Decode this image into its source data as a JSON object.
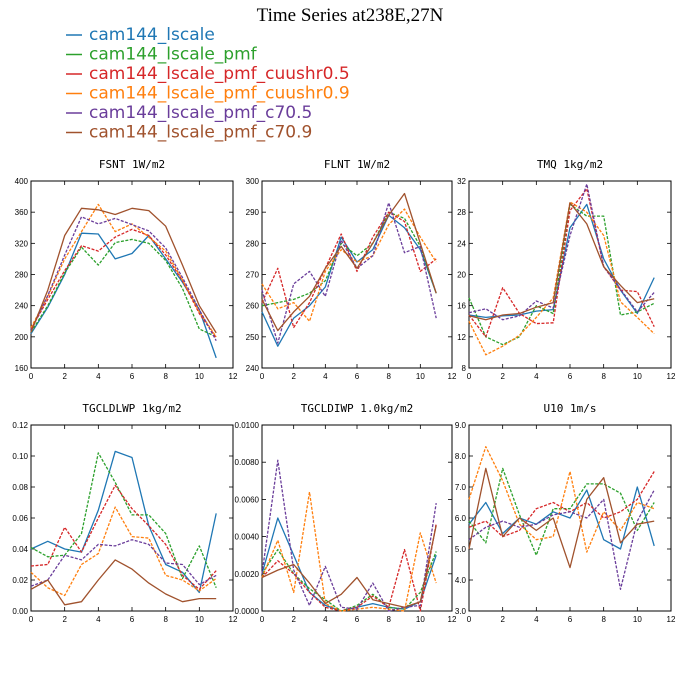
{
  "figure_title": "Time Series at238E,27N",
  "legend": [
    {
      "label": "cam144_lscale",
      "color": "#1f77b4",
      "dash": "solid"
    },
    {
      "label": "cam144_lscale_pmf",
      "color": "#2ca02c",
      "dash": "dashed"
    },
    {
      "label": "cam144_lscale_pmf_cuushr0.5",
      "color": "#d62728",
      "dash": "dashed"
    },
    {
      "label": "cam144_lscale_pmf_cuushr0.9",
      "color": "#ff7f0e",
      "dash": "dashed"
    },
    {
      "label": "cam144_lscale_pmf_c70.5",
      "color": "#6a3d9a",
      "dash": "dashed"
    },
    {
      "label": "cam144_lscale_pmf_c70.9",
      "color": "#a0522d",
      "dash": "solid"
    }
  ],
  "chart_data": [
    {
      "type": "line",
      "title": "FSNT   1W/m2",
      "x": [
        0,
        1,
        2,
        3,
        4,
        5,
        6,
        7,
        8,
        9,
        10,
        11
      ],
      "xlim": [
        0,
        12
      ],
      "xticks": [
        "0",
        "2",
        "4",
        "6",
        "8",
        "10",
        "12"
      ],
      "ylim": [
        160,
        400
      ],
      "yticks": [
        "160",
        "200",
        "240",
        "280",
        "320",
        "360",
        "400"
      ],
      "series": [
        {
          "name": "cam144_lscale",
          "values": [
            204,
            238,
            280,
            333,
            332,
            300,
            307,
            330,
            300,
            270,
            235,
            173
          ]
        },
        {
          "name": "cam144_lscale_pmf",
          "values": [
            206,
            240,
            282,
            315,
            292,
            321,
            325,
            320,
            298,
            262,
            210,
            200
          ]
        },
        {
          "name": "cam144_lscale_pmf_cuushr0.5",
          "values": [
            210,
            248,
            285,
            317,
            310,
            328,
            338,
            330,
            305,
            272,
            230,
            199
          ]
        },
        {
          "name": "cam144_lscale_pmf_cuushr0.9",
          "values": [
            212,
            252,
            300,
            335,
            370,
            335,
            345,
            328,
            310,
            273,
            232,
            200
          ]
        },
        {
          "name": "cam144_lscale_pmf_c70.5",
          "values": [
            208,
            253,
            305,
            354,
            345,
            352,
            344,
            336,
            314,
            276,
            235,
            195
          ]
        },
        {
          "name": "cam144_lscale_pmf_c70.9",
          "values": [
            206,
            260,
            330,
            365,
            363,
            357,
            365,
            362,
            342,
            292,
            240,
            205
          ]
        }
      ]
    },
    {
      "type": "line",
      "title": "FLNT   1W/m2",
      "x": [
        0,
        1,
        2,
        3,
        4,
        5,
        6,
        7,
        8,
        9,
        10,
        11
      ],
      "xlim": [
        0,
        12
      ],
      "xticks": [
        "0",
        "2",
        "4",
        "6",
        "8",
        "10",
        "12"
      ],
      "ylim": [
        240,
        300
      ],
      "yticks": [
        "240",
        "250",
        "260",
        "270",
        "280",
        "290",
        "300"
      ],
      "series": [
        {
          "name": "cam144_lscale",
          "values": [
            258,
            247,
            256,
            260,
            266,
            282,
            274,
            278,
            289,
            285,
            278,
            264
          ]
        },
        {
          "name": "cam144_lscale_pmf",
          "values": [
            260,
            261,
            262,
            264,
            268,
            280,
            276,
            280,
            290,
            288,
            279,
            264
          ]
        },
        {
          "name": "cam144_lscale_pmf_cuushr0.5",
          "values": [
            261,
            272,
            253,
            261,
            272,
            283,
            271,
            282,
            290,
            287,
            271,
            275
          ]
        },
        {
          "name": "cam144_lscale_pmf_cuushr0.9",
          "values": [
            267,
            259,
            261,
            255,
            271,
            278,
            274,
            276,
            286,
            291,
            282,
            274
          ]
        },
        {
          "name": "cam144_lscale_pmf_c70.5",
          "values": [
            265,
            248,
            267,
            271,
            263,
            281,
            272,
            276,
            293,
            277,
            279,
            256
          ]
        },
        {
          "name": "cam144_lscale_pmf_c70.9",
          "values": [
            262,
            252,
            258,
            263,
            272,
            279,
            272,
            280,
            289,
            296,
            280,
            264
          ]
        }
      ]
    },
    {
      "type": "line",
      "title": "TMQ   1kg/m2",
      "x": [
        0,
        1,
        2,
        3,
        4,
        5,
        6,
        7,
        8,
        9,
        10,
        11
      ],
      "xlim": [
        0,
        12
      ],
      "xticks": [
        "0",
        "2",
        "4",
        "6",
        "8",
        "10",
        "12"
      ],
      "ylim": [
        8,
        32
      ],
      "yticks": [
        "8",
        "12",
        "16",
        "20",
        "24",
        "28",
        "32"
      ],
      "series": [
        {
          "name": "cam144_lscale",
          "values": [
            14.8,
            14.5,
            14.7,
            14.8,
            15.3,
            15.5,
            26.0,
            29.0,
            22.0,
            18.0,
            15.0,
            19.6
          ]
        },
        {
          "name": "cam144_lscale_pmf",
          "values": [
            17.0,
            12.0,
            11.0,
            12.0,
            16.0,
            15.0,
            29.0,
            27.5,
            27.5,
            14.8,
            15.2,
            16.3
          ]
        },
        {
          "name": "cam144_lscale_pmf_cuushr0.5",
          "values": [
            14.8,
            12.0,
            18.3,
            15.0,
            13.7,
            13.8,
            28.2,
            31.0,
            21.0,
            18.0,
            17.8,
            13.3
          ]
        },
        {
          "name": "cam144_lscale_pmf_cuushr0.9",
          "values": [
            14.0,
            9.7,
            10.8,
            12.2,
            14.5,
            17.0,
            29.3,
            28.0,
            25.0,
            16.5,
            14.5,
            12.4
          ]
        },
        {
          "name": "cam144_lscale_pmf_c70.5",
          "values": [
            15.1,
            15.6,
            14.2,
            14.7,
            16.6,
            15.7,
            25.0,
            31.6,
            21.0,
            18.1,
            15.2,
            17.7
          ]
        },
        {
          "name": "cam144_lscale_pmf_c70.9",
          "values": [
            14.7,
            14.2,
            14.8,
            15.0,
            15.8,
            16.4,
            29.2,
            26.5,
            21.0,
            18.6,
            16.4,
            16.9
          ]
        }
      ]
    },
    {
      "type": "line",
      "title": "TGCLDLWP   1kg/m2",
      "x": [
        0,
        1,
        2,
        3,
        4,
        5,
        6,
        7,
        8,
        9,
        10,
        11
      ],
      "xlim": [
        0,
        12
      ],
      "xticks": [
        "0",
        "2",
        "4",
        "6",
        "8",
        "10",
        "12"
      ],
      "ylim": [
        0.0,
        0.12
      ],
      "yticks": [
        "0.00",
        "0.02",
        "0.04",
        "0.06",
        "0.08",
        "0.10",
        "0.12"
      ],
      "series": [
        {
          "name": "cam144_lscale",
          "values": [
            0.04,
            0.045,
            0.04,
            0.038,
            0.065,
            0.103,
            0.099,
            0.055,
            0.03,
            0.025,
            0.012,
            0.063
          ]
        },
        {
          "name": "cam144_lscale_pmf",
          "values": [
            0.041,
            0.035,
            0.036,
            0.05,
            0.102,
            0.083,
            0.062,
            0.062,
            0.05,
            0.021,
            0.042,
            0.015
          ]
        },
        {
          "name": "cam144_lscale_pmf_cuushr0.5",
          "values": [
            0.029,
            0.03,
            0.054,
            0.038,
            0.06,
            0.081,
            0.066,
            0.055,
            0.043,
            0.023,
            0.014,
            0.026
          ]
        },
        {
          "name": "cam144_lscale_pmf_cuushr0.9",
          "values": [
            0.025,
            0.015,
            0.01,
            0.03,
            0.037,
            0.067,
            0.048,
            0.047,
            0.023,
            0.02,
            0.013,
            0.021
          ]
        },
        {
          "name": "cam144_lscale_pmf_c70.5",
          "values": [
            0.016,
            0.02,
            0.036,
            0.033,
            0.043,
            0.042,
            0.046,
            0.043,
            0.031,
            0.03,
            0.017,
            0.023
          ]
        },
        {
          "name": "cam144_lscale_pmf_c70.9",
          "values": [
            0.014,
            0.02,
            0.004,
            0.006,
            0.02,
            0.033,
            0.027,
            0.018,
            0.011,
            0.006,
            0.008,
            0.008
          ]
        }
      ]
    },
    {
      "type": "line",
      "title": "TGCLDIWP   1.0kg/m2",
      "x": [
        0,
        1,
        2,
        3,
        4,
        5,
        6,
        7,
        8,
        9,
        10,
        11
      ],
      "xlim": [
        0,
        12
      ],
      "xticks": [
        "0",
        "2",
        "4",
        "6",
        "8",
        "10",
        "12"
      ],
      "ylim": [
        0.0,
        0.01
      ],
      "yticks": [
        "0.0000",
        "0.0020",
        "0.0040",
        "0.0060",
        "0.0080",
        "0.0100"
      ],
      "series": [
        {
          "name": "cam144_lscale",
          "values": [
            0.002,
            0.005,
            0.003,
            0.001,
            0.0003,
            0.0,
            0.0002,
            0.0004,
            0.0002,
            0.0001,
            0.0005,
            0.003
          ]
        },
        {
          "name": "cam144_lscale_pmf",
          "values": [
            0.002,
            0.0033,
            0.002,
            0.0012,
            0.0006,
            0.0,
            0.0003,
            0.0009,
            0.0002,
            0.0001,
            0.001,
            0.0032
          ]
        },
        {
          "name": "cam144_lscale_pmf_cuushr0.5",
          "values": [
            0.0018,
            0.0027,
            0.002,
            0.001,
            0.0002,
            0.0,
            0.0002,
            0.0008,
            0.0002,
            0.0033,
            0.0,
            0.0047
          ]
        },
        {
          "name": "cam144_lscale_pmf_cuushr0.9",
          "values": [
            0.0018,
            0.0038,
            0.001,
            0.0064,
            0.0004,
            0.0,
            0.0001,
            0.0002,
            0.0001,
            0.0,
            0.0042,
            0.0015
          ]
        },
        {
          "name": "cam144_lscale_pmf_c70.5",
          "values": [
            0.002,
            0.0081,
            0.0022,
            0.0003,
            0.0024,
            0.0002,
            0.0001,
            0.0015,
            0.0,
            0.0002,
            0.0003,
            0.0058
          ]
        },
        {
          "name": "cam144_lscale_pmf_c70.9",
          "values": [
            0.0018,
            0.0022,
            0.0025,
            0.0015,
            0.0004,
            0.0009,
            0.0018,
            0.0006,
            0.0004,
            0.0002,
            0.0005,
            0.0046
          ]
        }
      ]
    },
    {
      "type": "line",
      "title": "U10   1m/s",
      "x": [
        0,
        1,
        2,
        3,
        4,
        5,
        6,
        7,
        8,
        9,
        10,
        11
      ],
      "xlim": [
        0,
        12
      ],
      "xticks": [
        "0",
        "2",
        "4",
        "6",
        "8",
        "10",
        "12"
      ],
      "ylim": [
        3.0,
        9.0
      ],
      "yticks": [
        "3.0",
        "4.0",
        "5.0",
        "6.0",
        "7.0",
        "8.0",
        "9.0"
      ],
      "series": [
        {
          "name": "cam144_lscale",
          "values": [
            5.8,
            6.5,
            5.5,
            6.0,
            5.8,
            6.2,
            6.0,
            6.9,
            5.3,
            5.0,
            7.0,
            5.1
          ]
        },
        {
          "name": "cam144_lscale_pmf",
          "values": [
            5.9,
            5.2,
            7.6,
            6.1,
            4.8,
            6.3,
            6.3,
            7.1,
            7.1,
            6.8,
            5.6,
            6.5
          ]
        },
        {
          "name": "cam144_lscale_pmf_cuushr0.5",
          "values": [
            5.7,
            5.9,
            5.4,
            5.6,
            6.3,
            6.5,
            6.2,
            6.5,
            6.0,
            6.2,
            6.6,
            7.5
          ]
        },
        {
          "name": "cam144_lscale_pmf_cuushr0.9",
          "values": [
            6.6,
            8.3,
            7.2,
            5.8,
            5.3,
            5.4,
            7.5,
            4.9,
            6.2,
            5.6,
            6.5,
            6.3
          ]
        },
        {
          "name": "cam144_lscale_pmf_c70.5",
          "values": [
            5.3,
            5.7,
            5.9,
            5.7,
            5.8,
            6.1,
            6.2,
            6.0,
            6.6,
            3.7,
            5.9,
            6.9
          ]
        },
        {
          "name": "cam144_lscale_pmf_c70.9",
          "values": [
            5.0,
            7.6,
            5.4,
            6.0,
            5.6,
            6.0,
            4.4,
            6.6,
            7.3,
            5.2,
            5.8,
            5.9
          ]
        }
      ]
    }
  ]
}
